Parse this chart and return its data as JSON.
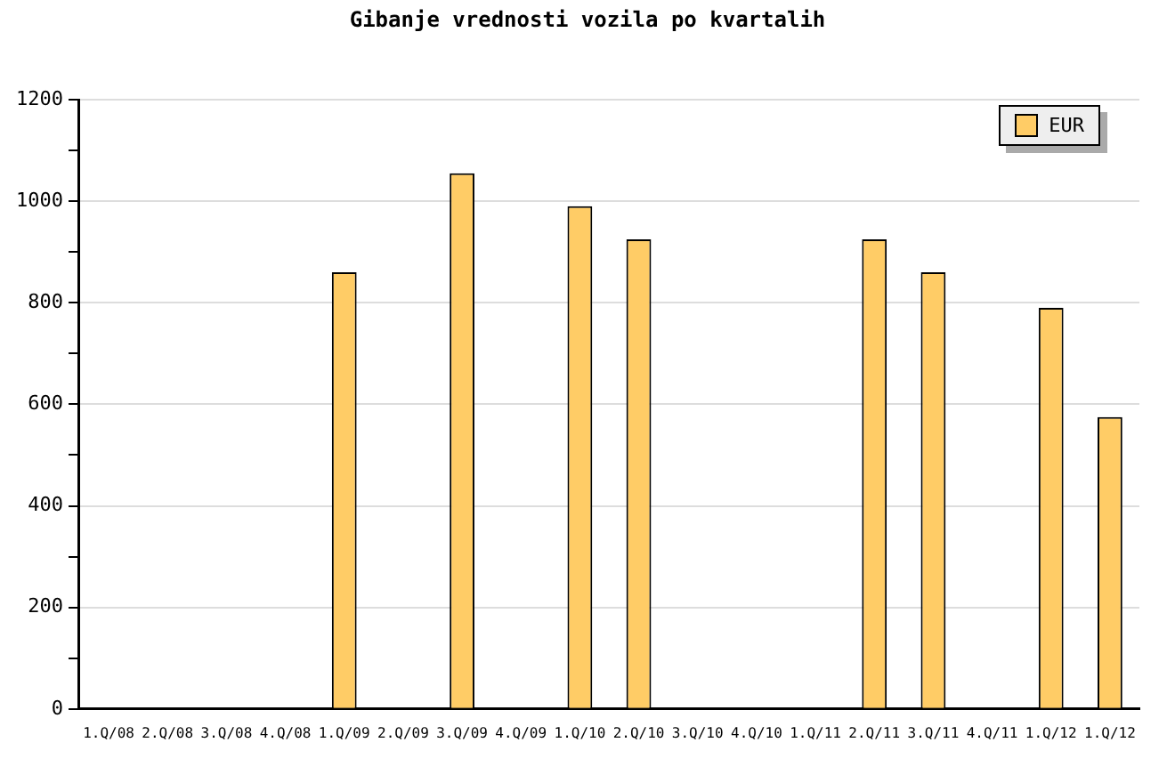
{
  "chart_data": {
    "type": "bar",
    "title": "Gibanje vrednosti vozila po kvartalih",
    "categories": [
      "1.Q/08",
      "2.Q/08",
      "3.Q/08",
      "4.Q/08",
      "1.Q/09",
      "2.Q/09",
      "3.Q/09",
      "4.Q/09",
      "1.Q/10",
      "2.Q/10",
      "3.Q/10",
      "4.Q/10",
      "1.Q/11",
      "2.Q/11",
      "3.Q/11",
      "4.Q/11",
      "1.Q/12",
      "1.Q/12"
    ],
    "series": [
      {
        "name": "EUR",
        "color": "#ffcc66",
        "values": [
          null,
          null,
          null,
          null,
          860,
          null,
          1055,
          null,
          990,
          925,
          null,
          null,
          null,
          925,
          860,
          null,
          790,
          575
        ]
      }
    ],
    "ylim": [
      0,
      1200
    ],
    "yticks": [
      0,
      {
        "value": 100,
        "label": null
      },
      200,
      {
        "value": 300,
        "label": null
      },
      400,
      {
        "value": 500,
        "label": null
      },
      600,
      {
        "value": 700,
        "label": null
      },
      800,
      {
        "value": 900,
        "label": null
      },
      1000,
      {
        "value": 1100,
        "label": null
      },
      1200
    ],
    "grid": "y",
    "legend": "top right"
  }
}
